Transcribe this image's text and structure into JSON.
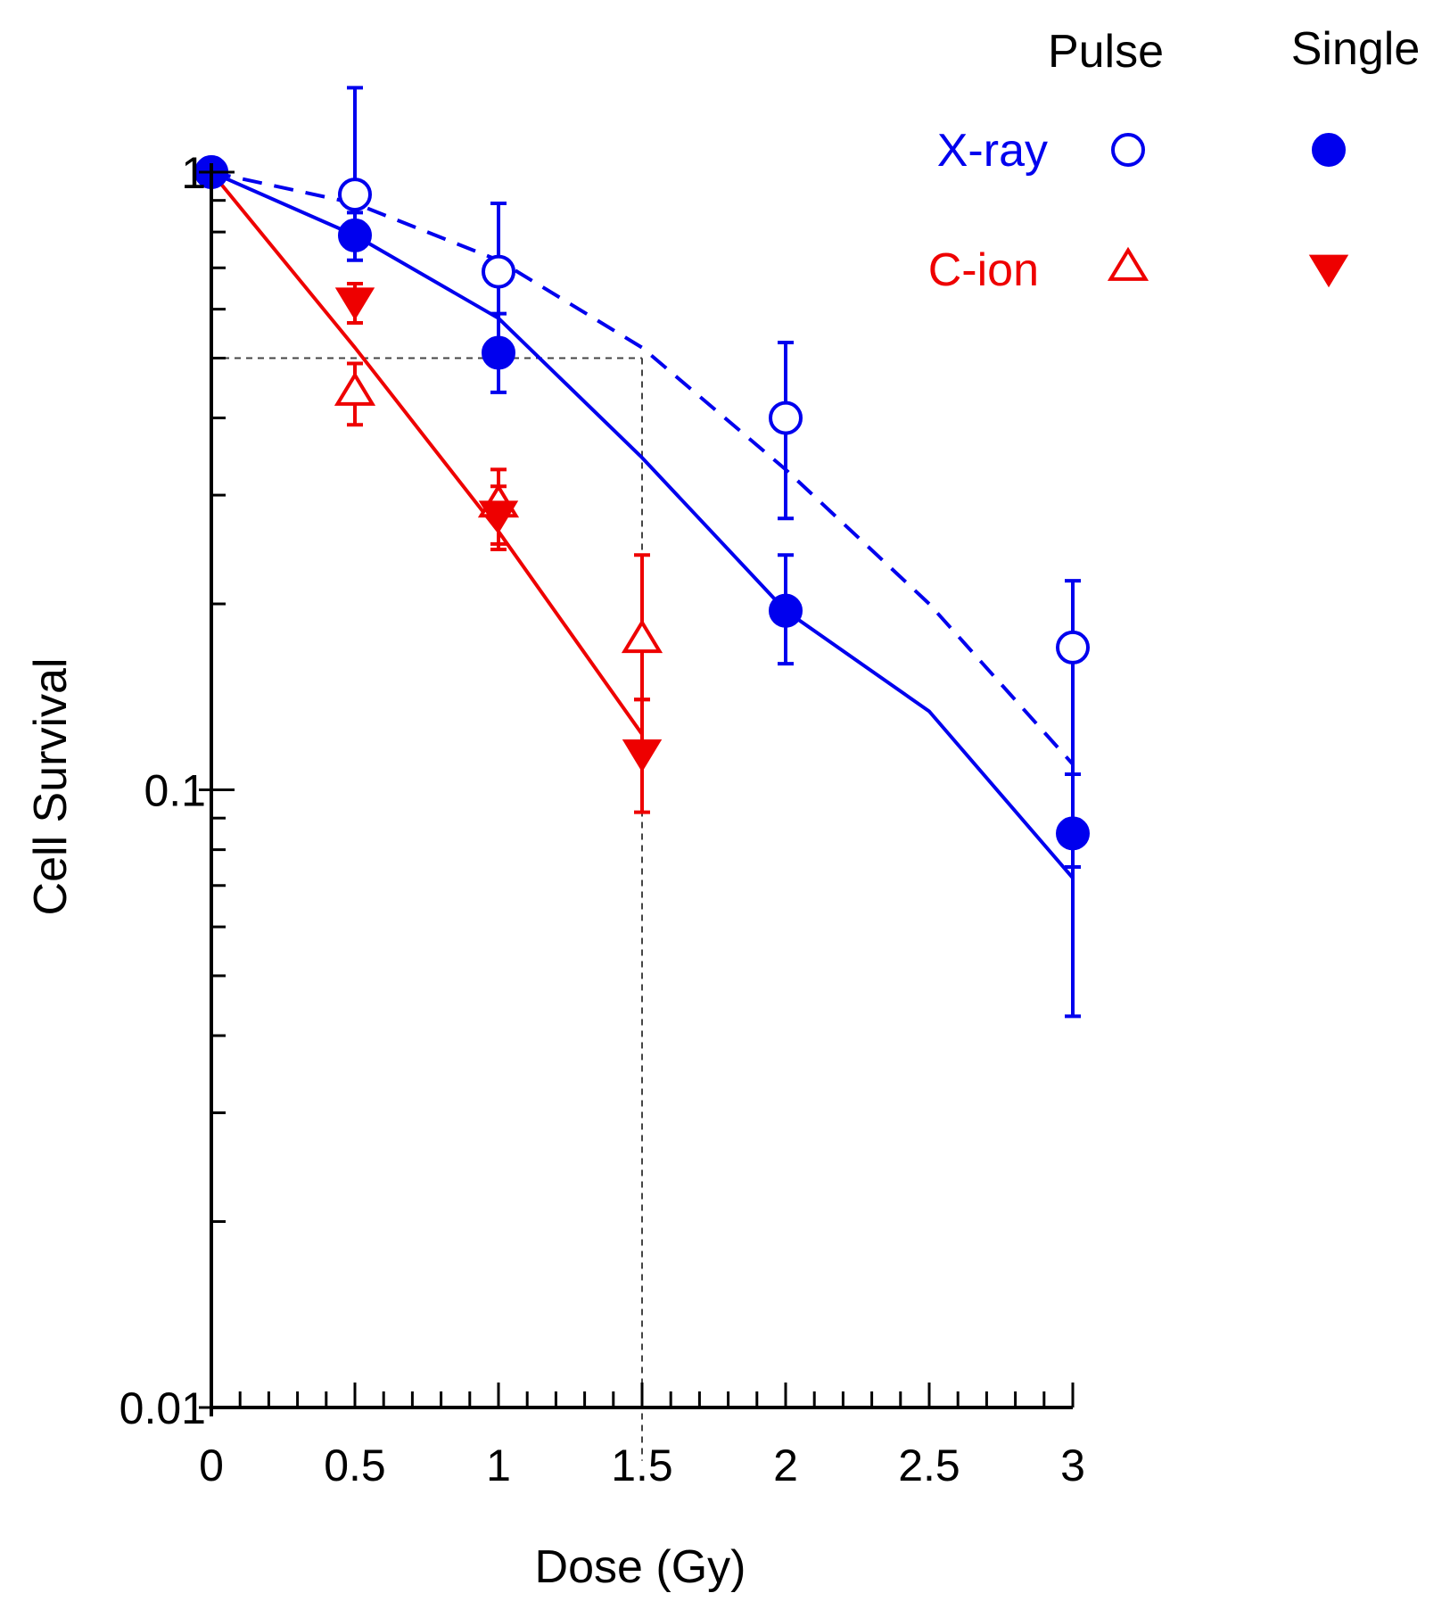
{
  "chart_data": {
    "type": "scatter",
    "xlabel": "Dose (Gy)",
    "ylabel": "Cell Survival",
    "xlim": [
      0,
      3
    ],
    "ylim": [
      0.01,
      1
    ],
    "yscale": "log",
    "x_ticks": [
      {
        "value": 0,
        "label": "0"
      },
      {
        "value": 0.5,
        "label": "0.5"
      },
      {
        "value": 1,
        "label": "1"
      },
      {
        "value": 1.5,
        "label": "1.5"
      },
      {
        "value": 2,
        "label": "2"
      },
      {
        "value": 2.5,
        "label": "2.5"
      },
      {
        "value": 3,
        "label": "3"
      }
    ],
    "y_ticks": [
      {
        "value": 1,
        "label": "1"
      },
      {
        "value": 0.1,
        "label": "0.1"
      },
      {
        "value": 0.01,
        "label": "0.01"
      }
    ],
    "grid": false,
    "colors": {
      "xray": "#0000ee",
      "cion": "#ee0000",
      "axis": "#000000",
      "reference": "#444444"
    },
    "legend": {
      "position": "top-right",
      "column_headers": [
        "Pulse",
        "Single"
      ],
      "rows": [
        {
          "label": "X-ray",
          "color": "#0000ee",
          "pulse_marker": "open-circle",
          "single_marker": "filled-circle"
        },
        {
          "label": "C-ion",
          "color": "#ee0000",
          "pulse_marker": "open-triangle-up",
          "single_marker": "filled-triangle-down"
        }
      ]
    },
    "series": [
      {
        "name": "X-ray Pulse",
        "color": "#0000ee",
        "marker": "open-circle",
        "x": [
          0,
          0.5,
          1,
          2,
          3
        ],
        "y": [
          1.0,
          0.92,
          0.69,
          0.4,
          0.17
        ],
        "err_low": [
          1.0,
          0.81,
          0.53,
          0.275,
          0.075
        ],
        "err_high": [
          1.0,
          1.37,
          0.89,
          0.53,
          0.218
        ]
      },
      {
        "name": "X-ray Single",
        "color": "#0000ee",
        "marker": "filled-circle",
        "x": [
          0,
          0.5,
          1,
          2,
          3
        ],
        "y": [
          1.0,
          0.79,
          0.51,
          0.195,
          0.085
        ],
        "err_low": [
          1.0,
          0.72,
          0.44,
          0.16,
          0.043
        ],
        "err_high": [
          1.0,
          0.86,
          0.59,
          0.24,
          0.106
        ]
      },
      {
        "name": "C-ion Pulse",
        "color": "#ee0000",
        "marker": "open-triangle-up",
        "x": [
          0.5,
          1,
          1.5
        ],
        "y": [
          0.44,
          0.29,
          0.175
        ],
        "err_low": [
          0.39,
          0.25,
          0.14
        ],
        "err_high": [
          0.49,
          0.33,
          0.24
        ]
      },
      {
        "name": "C-ion Single",
        "color": "#ee0000",
        "marker": "filled-triangle-down",
        "x": [
          0.5,
          1,
          1.5
        ],
        "y": [
          0.62,
          0.28,
          0.115
        ],
        "err_low": [
          0.57,
          0.245,
          0.092
        ],
        "err_high": [
          0.66,
          0.31,
          0.14
        ]
      }
    ],
    "fits": [
      {
        "color": "#0000ee",
        "style": "solid",
        "x": [
          0,
          0.5,
          1,
          1.5,
          2,
          2.5,
          3
        ],
        "y": [
          1.0,
          0.79,
          0.58,
          0.345,
          0.195,
          0.134,
          0.072
        ]
      },
      {
        "color": "#0000ee",
        "style": "dashed",
        "x": [
          0,
          0.5,
          1,
          1.5,
          2,
          2.5,
          3
        ],
        "y": [
          1.0,
          0.89,
          0.72,
          0.52,
          0.33,
          0.2,
          0.11
        ]
      },
      {
        "color": "#ee0000",
        "style": "solid",
        "x": [
          0,
          0.5,
          1,
          1.5
        ],
        "y": [
          1.0,
          0.52,
          0.262,
          0.123
        ]
      }
    ],
    "reference_lines": [
      {
        "style": "dotted",
        "color": "#444444",
        "x": [
          0,
          1.5
        ],
        "y": [
          0.5,
          0.5
        ]
      },
      {
        "style": "dotted",
        "color": "#444444",
        "x": [
          1.5,
          1.5
        ],
        "y": [
          0.5,
          0.0082
        ]
      }
    ]
  }
}
